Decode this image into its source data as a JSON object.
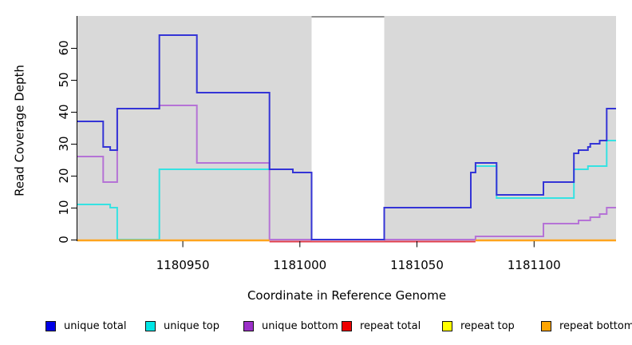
{
  "figure": {
    "title": "",
    "xlabel": "Coordinate in Reference Genome",
    "ylabel": "Read Coverage Depth"
  },
  "chart_data": {
    "type": "line",
    "subtype": "step-coverage",
    "title": "",
    "xlabel": "Coordinate in Reference Genome",
    "ylabel": "Read Coverage Depth",
    "xlim": [
      1180905,
      1181135
    ],
    "ylim": [
      0,
      70
    ],
    "x_ticks": [
      1180950,
      1181000,
      1181050,
      1181100
    ],
    "y_ticks": [
      0,
      10,
      20,
      30,
      40,
      50,
      60
    ],
    "grid": false,
    "plot_bg": "#d9d9d9",
    "gap_region": {
      "x_start": 1181005,
      "x_end": 1181036,
      "fill": "#ffffff",
      "top_border": "#909090"
    },
    "legend_position": "bottom",
    "series": [
      {
        "name": "unique total",
        "color": "#3434d6",
        "legend_color": "#0000e6",
        "points": [
          [
            1180905,
            37
          ],
          [
            1180916,
            29
          ],
          [
            1180919,
            28
          ],
          [
            1180922,
            41
          ],
          [
            1180940,
            64
          ],
          [
            1180956,
            46
          ],
          [
            1180987,
            22
          ],
          [
            1180997,
            21
          ],
          [
            1181005,
            0
          ],
          [
            1181036,
            10
          ],
          [
            1181073,
            21
          ],
          [
            1181075,
            24
          ],
          [
            1181084,
            14
          ],
          [
            1181104,
            18
          ],
          [
            1181117,
            27
          ],
          [
            1181119,
            28
          ],
          [
            1181123,
            29
          ],
          [
            1181124,
            30
          ],
          [
            1181128,
            31
          ],
          [
            1181131,
            41
          ]
        ]
      },
      {
        "name": "unique top",
        "color": "#35e2e2",
        "legend_color": "#00e5e5",
        "points": [
          [
            1180905,
            11
          ],
          [
            1180919,
            10
          ],
          [
            1180922,
            0
          ],
          [
            1180940,
            22
          ],
          [
            1180997,
            21
          ],
          [
            1181005,
            0
          ],
          [
            1181036,
            10
          ],
          [
            1181073,
            21
          ],
          [
            1181075,
            23
          ],
          [
            1181084,
            13
          ],
          [
            1181117,
            22
          ],
          [
            1181123,
            23
          ],
          [
            1181131,
            31
          ]
        ]
      },
      {
        "name": "unique bottom",
        "color": "#b573d6",
        "legend_color": "#9b30c8",
        "points": [
          [
            1180905,
            26
          ],
          [
            1180916,
            18
          ],
          [
            1180922,
            41
          ],
          [
            1180940,
            42
          ],
          [
            1180956,
            24
          ],
          [
            1180987,
            0
          ],
          [
            1181075,
            1
          ],
          [
            1181104,
            5
          ],
          [
            1181119,
            6
          ],
          [
            1181124,
            7
          ],
          [
            1181128,
            8
          ],
          [
            1181131,
            10
          ]
        ]
      },
      {
        "name": "repeat total",
        "color": "#e03c4c",
        "legend_color": "#ee0000",
        "points": [
          [
            1180905,
            0
          ]
        ],
        "visible_segment": [
          1180987,
          1181075
        ]
      },
      {
        "name": "repeat top",
        "color": "#ffff00",
        "legend_color": "#ffff00",
        "points": [
          [
            1180905,
            0
          ]
        ],
        "hidden": true
      },
      {
        "name": "repeat bottom",
        "color": "#ffa41e",
        "legend_color": "#ffa500",
        "points": [
          [
            1180905,
            0
          ]
        ],
        "visible_segments": [
          [
            1180905,
            1180987
          ],
          [
            1181075,
            1181135
          ]
        ]
      }
    ]
  }
}
